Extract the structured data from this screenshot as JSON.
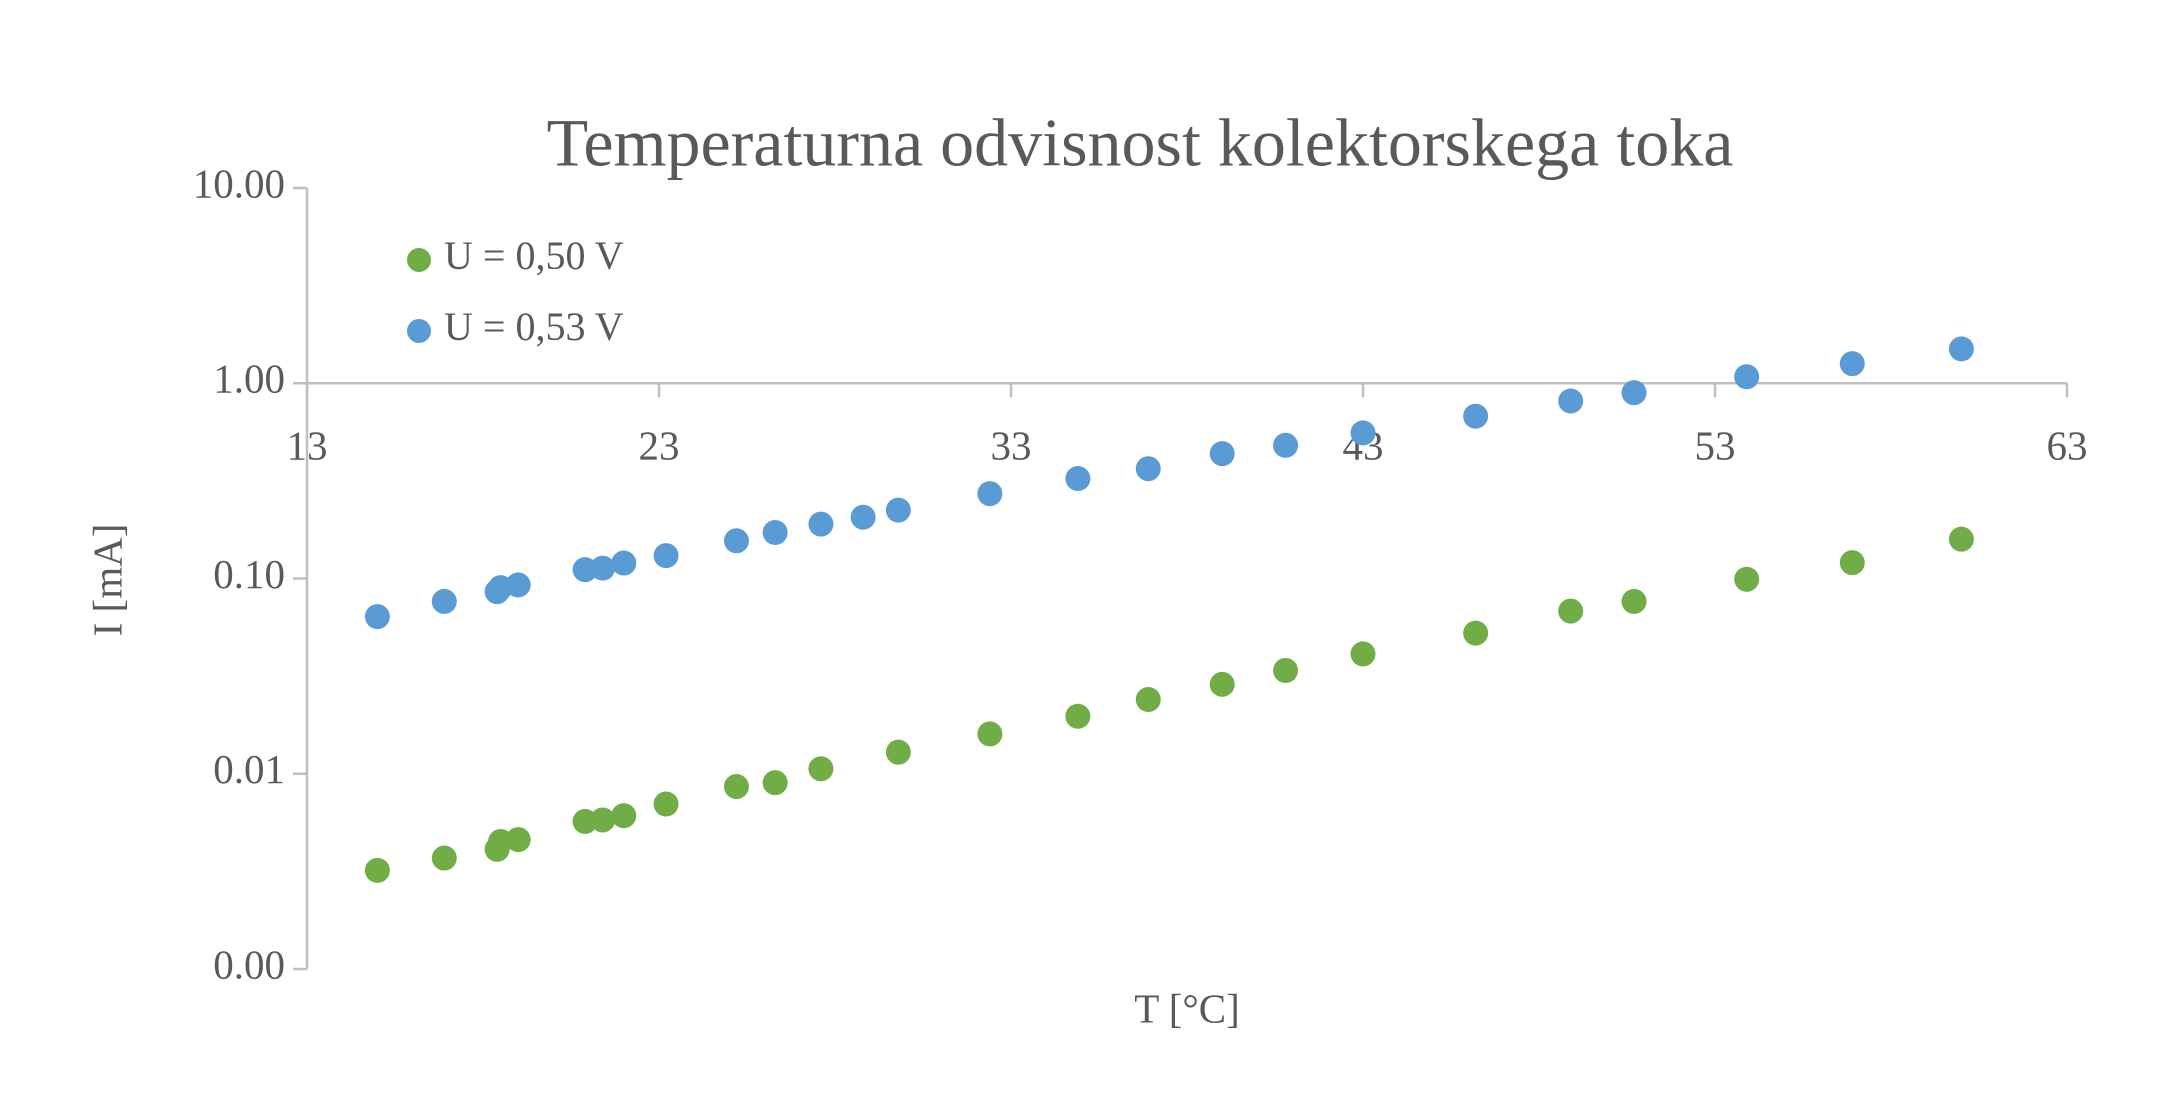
{
  "chart_data": {
    "type": "scatter",
    "title": "Temperaturna odvisnost kolektorskega toka",
    "x_label": "T [°C]",
    "y_label": "I [mA]",
    "xlim": [
      13,
      63
    ],
    "xticks": [
      13,
      23,
      33,
      43,
      53,
      63
    ],
    "ylim": [
      0.001,
      10
    ],
    "y_log": true,
    "yticks": [
      {
        "value": 0.001,
        "label": "0.00"
      },
      {
        "value": 0.01,
        "label": "0.01"
      },
      {
        "value": 0.1,
        "label": "0.10"
      },
      {
        "value": 1,
        "label": "1.00"
      },
      {
        "value": 10,
        "label": "10.00"
      }
    ],
    "x_axis_crosses_at": 1,
    "grid": false,
    "legend": "upper left",
    "series": [
      {
        "name": "U = 0,50 V",
        "color": "#70ad47",
        "x": [
          15.0,
          16.9,
          18.4,
          18.5,
          19.0,
          20.9,
          21.4,
          22.0,
          23.2,
          25.2,
          26.3,
          27.6,
          29.8,
          32.4,
          34.9,
          36.9,
          39.0,
          40.8,
          43.0,
          46.2,
          48.9,
          50.7,
          53.9,
          56.9,
          60.0
        ],
        "values": [
          0.0032,
          0.0037,
          0.0041,
          0.0045,
          0.0046,
          0.0057,
          0.0058,
          0.0061,
          0.007,
          0.0086,
          0.009,
          0.0106,
          0.0129,
          0.016,
          0.0197,
          0.024,
          0.0287,
          0.0338,
          0.0411,
          0.0525,
          0.0681,
          0.0763,
          0.0991,
          0.1205,
          0.159
        ]
      },
      {
        "name": "U = 0,53 V",
        "color": "#5b9bd5",
        "x": [
          15.0,
          16.9,
          18.4,
          18.5,
          19.0,
          20.9,
          21.4,
          22.0,
          23.2,
          25.2,
          26.3,
          27.6,
          28.8,
          29.8,
          32.4,
          34.9,
          36.9,
          39.0,
          40.8,
          43.0,
          46.2,
          48.9,
          50.7,
          53.9,
          56.9,
          60.0
        ],
        "values": [
          0.0638,
          0.0763,
          0.0856,
          0.0898,
          0.0927,
          0.111,
          0.113,
          0.12,
          0.131,
          0.156,
          0.172,
          0.19,
          0.206,
          0.224,
          0.272,
          0.325,
          0.365,
          0.436,
          0.481,
          0.557,
          0.678,
          0.811,
          0.895,
          1.08,
          1.26,
          1.5
        ]
      }
    ]
  }
}
